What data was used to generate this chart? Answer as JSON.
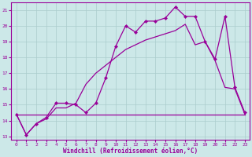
{
  "xlabel": "Windchill (Refroidissement éolien,°C)",
  "bg_color": "#cce8e8",
  "grid_color": "#aacccc",
  "line_color": "#990099",
  "xlim_min": -0.5,
  "xlim_max": 23.5,
  "ylim_min": 12.8,
  "ylim_max": 21.5,
  "yticks": [
    13,
    14,
    15,
    16,
    17,
    18,
    19,
    20,
    21
  ],
  "xticks": [
    0,
    1,
    2,
    3,
    4,
    5,
    6,
    7,
    8,
    9,
    10,
    11,
    12,
    13,
    14,
    15,
    16,
    17,
    18,
    19,
    20,
    21,
    22,
    23
  ],
  "line1_x": [
    0,
    1,
    2,
    3,
    4,
    5,
    6,
    7,
    8,
    9,
    10,
    11,
    12,
    13,
    14,
    15,
    16,
    17,
    18,
    19,
    20,
    21,
    22,
    23
  ],
  "line1_y": [
    14.4,
    13.1,
    13.8,
    14.2,
    15.1,
    15.1,
    15.0,
    14.5,
    15.1,
    16.7,
    18.7,
    20.0,
    19.6,
    20.3,
    20.3,
    20.5,
    21.2,
    20.6,
    20.6,
    19.0,
    17.9,
    20.6,
    16.1,
    14.5
  ],
  "line2_x": [
    0,
    1,
    2,
    3,
    4,
    5,
    6,
    7,
    8,
    9,
    10,
    11,
    12,
    13,
    14,
    15,
    16,
    17,
    18,
    19,
    20,
    21,
    22,
    23
  ],
  "line2_y": [
    14.4,
    13.1,
    13.8,
    14.1,
    14.8,
    14.8,
    15.1,
    16.3,
    17.0,
    17.5,
    18.0,
    18.5,
    18.8,
    19.1,
    19.3,
    19.5,
    19.7,
    20.1,
    18.8,
    19.0,
    17.8,
    16.1,
    16.0,
    14.4
  ],
  "line3_x": [
    0,
    1,
    2,
    3,
    4,
    5,
    6,
    7,
    8,
    9,
    10,
    11,
    12,
    13,
    14,
    15,
    16,
    17,
    18,
    19,
    20,
    21,
    22,
    23
  ],
  "line3_y": [
    14.4,
    14.4,
    14.4,
    14.4,
    14.4,
    14.4,
    14.4,
    14.4,
    14.4,
    14.4,
    14.4,
    14.4,
    14.4,
    14.4,
    14.4,
    14.4,
    14.4,
    14.4,
    14.4,
    14.4,
    14.4,
    14.4,
    14.4,
    14.4
  ],
  "label_fontsize": 5.5,
  "tick_fontsize": 4.5,
  "lw": 0.9
}
